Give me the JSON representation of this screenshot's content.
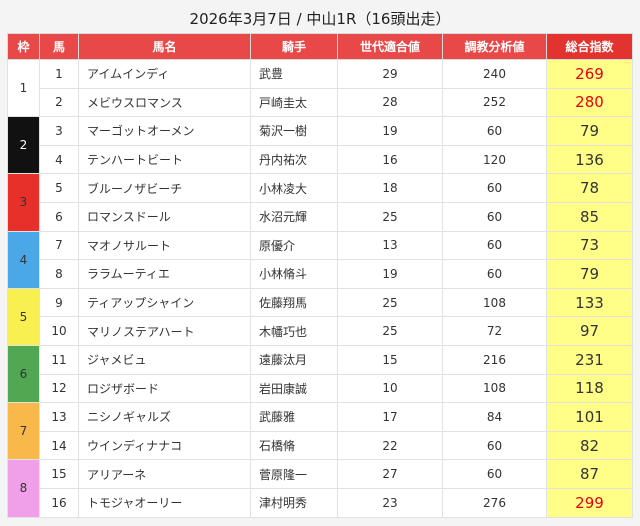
{
  "title": "2026年3月7日 / 中山1R（16頭出走）",
  "headers": [
    "枠",
    "馬",
    "馬名",
    "騎手",
    "世代適合値",
    "調教分析値",
    "総合指数"
  ],
  "waku_colors": {
    "1": "#ffffff",
    "2": "#111111",
    "3": "#e8302a",
    "4": "#4aa8e8",
    "5": "#f8f050",
    "6": "#52a852",
    "7": "#f8b84a",
    "8": "#f0a0e8"
  },
  "waku_text_colors": {
    "1": "#333333",
    "2": "#ffffff",
    "3": "#333333",
    "4": "#333333",
    "5": "#333333",
    "6": "#333333",
    "7": "#333333",
    "8": "#333333"
  },
  "highlight_color": "#e60012",
  "rows": [
    {
      "waku": "1",
      "num": "1",
      "name": "アイムインディ",
      "jockey": "武豊",
      "gen": "29",
      "train": "240",
      "total": "269",
      "hi": true
    },
    {
      "waku": "1",
      "num": "2",
      "name": "メビウスロマンス",
      "jockey": "戸崎圭太",
      "gen": "28",
      "train": "252",
      "total": "280",
      "hi": true
    },
    {
      "waku": "2",
      "num": "3",
      "name": "マーゴットオーメン",
      "jockey": "菊沢一樹",
      "gen": "19",
      "train": "60",
      "total": "79"
    },
    {
      "waku": "2",
      "num": "4",
      "name": "テンハートビート",
      "jockey": "丹内祐次",
      "gen": "16",
      "train": "120",
      "total": "136"
    },
    {
      "waku": "3",
      "num": "5",
      "name": "ブルーノザビーチ",
      "jockey": "小林凌大",
      "gen": "18",
      "train": "60",
      "total": "78"
    },
    {
      "waku": "3",
      "num": "6",
      "name": "ロマンスドール",
      "jockey": "水沼元輝",
      "gen": "25",
      "train": "60",
      "total": "85"
    },
    {
      "waku": "4",
      "num": "7",
      "name": "マオノサルート",
      "jockey": "原優介",
      "gen": "13",
      "train": "60",
      "total": "73"
    },
    {
      "waku": "4",
      "num": "8",
      "name": "ララムーティエ",
      "jockey": "小林脩斗",
      "gen": "19",
      "train": "60",
      "total": "79"
    },
    {
      "waku": "5",
      "num": "9",
      "name": "ティアップシャイン",
      "jockey": "佐藤翔馬",
      "gen": "25",
      "train": "108",
      "total": "133"
    },
    {
      "waku": "5",
      "num": "10",
      "name": "マリノステアハート",
      "jockey": "木幡巧也",
      "gen": "25",
      "train": "72",
      "total": "97"
    },
    {
      "waku": "6",
      "num": "11",
      "name": "ジャメビュ",
      "jockey": "遠藤汰月",
      "gen": "15",
      "train": "216",
      "total": "231"
    },
    {
      "waku": "6",
      "num": "12",
      "name": "ロジザボード",
      "jockey": "岩田康誠",
      "gen": "10",
      "train": "108",
      "total": "118"
    },
    {
      "waku": "7",
      "num": "13",
      "name": "ニシノギャルズ",
      "jockey": "武藤雅",
      "gen": "17",
      "train": "84",
      "total": "101"
    },
    {
      "waku": "7",
      "num": "14",
      "name": "ウインディナナコ",
      "jockey": "石橋脩",
      "gen": "22",
      "train": "60",
      "total": "82"
    },
    {
      "waku": "8",
      "num": "15",
      "name": "アリアーネ",
      "jockey": "菅原隆一",
      "gen": "27",
      "train": "60",
      "total": "87"
    },
    {
      "waku": "8",
      "num": "16",
      "name": "トモジャオーリー",
      "jockey": "津村明秀",
      "gen": "23",
      "train": "276",
      "total": "299",
      "hi": true
    }
  ]
}
